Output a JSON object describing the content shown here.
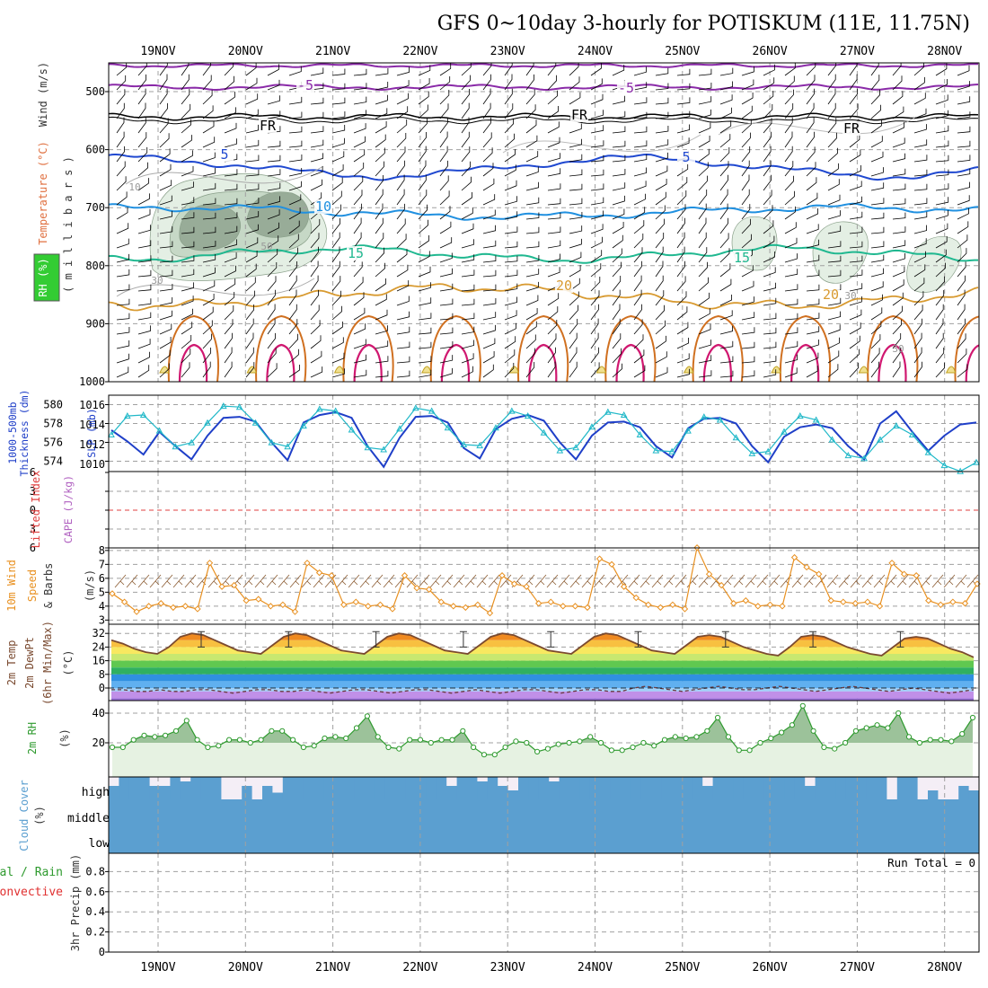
{
  "title": "GFS 0~10day 3-hourly for POTISKUM (11E, 11.75N)",
  "dates": [
    "19NOV",
    "20NOV",
    "21NOV",
    "22NOV",
    "23NOV",
    "24NOV",
    "25NOV",
    "26NOV",
    "27NOV",
    "28NOV"
  ],
  "colors": {
    "grid": "#a0a0a0",
    "thick": "#1f3fc8",
    "slp": "#20b8c8",
    "wind": "#e89020",
    "temp": "#7a4a30",
    "rh": "#2e9a2e",
    "cloud": "#5b9fd0",
    "cloud_bg": "#f4eef6"
  },
  "panel_labels": {
    "upper": {
      "wind": "Wind (m/s)",
      "temperature": "Temperature (°C)",
      "rh": "RH (%)",
      "millibars": "( m i l l i b a r s )"
    },
    "thickness": {
      "line1": "1000-500mb",
      "line2": "Thickness (dm)",
      "slp": "SLP (mb)"
    },
    "stability": {
      "lifted": "Lifted Index",
      "cape": "CAPE (J/kg)"
    },
    "wind10m": {
      "line1": "10m Wind",
      "line2": "Speed",
      "line3": "& Barbs",
      "unit": "(m/s)"
    },
    "temp2m": {
      "line1": "2m Temp",
      "line2": "2m DewPt",
      "line3": "(6hr Min/Max)",
      "unit": "(°C)"
    },
    "rh2m": {
      "line1": "2m RH",
      "unit": "(%)"
    },
    "cloud": {
      "line1": "Cloud Cover",
      "unit": "(%)",
      "high": "high",
      "middle": "middle",
      "low": "low"
    },
    "precip": {
      "line1": "Total / Rain",
      "line2": "Convective",
      "line3": "3hr Precip (mm)",
      "run_total": "Run Total = 0"
    }
  },
  "upper_air": {
    "pressure_ticks": [
      500,
      600,
      700,
      800,
      900,
      1000
    ],
    "isotherm_labels": [
      "-5",
      "-5",
      "FR",
      "FR",
      "FR",
      "5",
      "5",
      "10",
      "15",
      "15",
      "20",
      "20"
    ],
    "rh_labels": [
      "10",
      "30",
      "50",
      "30",
      "30"
    ]
  },
  "chart_data": [
    {
      "type": "line",
      "panel": "thickness-slp",
      "series": [
        {
          "name": "1000-500mb Thickness (dm)",
          "values": [
            577.3,
            576.1,
            574.7,
            577.1,
            575.6,
            574.2,
            576.7,
            578.6,
            578.7,
            578.2,
            576.0,
            574.1,
            578.1,
            578.9,
            579.2,
            578.6,
            575.6,
            573.4,
            576.5,
            578.7,
            578.8,
            578.1,
            575.4,
            574.3,
            577.4,
            578.5,
            578.9,
            578.3,
            576.0,
            574.2,
            576.7,
            578.1,
            578.2,
            577.6,
            575.6,
            574.4,
            577.5,
            578.5,
            578.6,
            578.0,
            575.6,
            573.9,
            576.6,
            577.6,
            577.9,
            577.5,
            575.6,
            574.2,
            578.0,
            579.3,
            577.1,
            575.1,
            576.7,
            577.9,
            578.1
          ]
        },
        {
          "name": "SLP (mb)",
          "values": [
            1013.0,
            1014.9,
            1015.0,
            1013.4,
            1011.8,
            1012.2,
            1014.2,
            1015.9,
            1015.8,
            1014.2,
            1012.2,
            1011.8,
            1013.9,
            1015.6,
            1015.4,
            1013.5,
            1011.7,
            1011.5,
            1013.6,
            1015.7,
            1015.4,
            1013.7,
            1012.0,
            1011.9,
            1013.7,
            1015.4,
            1014.9,
            1013.2,
            1011.4,
            1011.7,
            1013.8,
            1015.3,
            1015.0,
            1013.0,
            1011.4,
            1011.3,
            1013.4,
            1014.8,
            1014.5,
            1012.7,
            1011.1,
            1011.3,
            1013.3,
            1014.9,
            1014.5,
            1012.5,
            1010.9,
            1010.6,
            1012.5,
            1013.9,
            1013.0,
            1011.2,
            1009.9,
            1009.3,
            1010.2
          ]
        }
      ],
      "y_left": {
        "ticks": [
          574,
          576,
          578,
          580
        ]
      },
      "y_right": {
        "ticks": [
          1010,
          1012,
          1014,
          1016
        ]
      }
    },
    {
      "type": "line",
      "panel": "lifted-cape",
      "y_ticks": [
        "6",
        "3",
        "0",
        "3",
        "6"
      ],
      "series": []
    },
    {
      "type": "line",
      "panel": "wind10m",
      "y_ticks": [
        3,
        4,
        5,
        6,
        7,
        8
      ],
      "series": [
        {
          "name": "10m Wind Speed",
          "values": [
            4.9,
            4.3,
            3.6,
            4.0,
            4.2,
            3.9,
            4.0,
            3.8,
            7.1,
            5.4,
            5.5,
            4.4,
            4.5,
            4.0,
            4.1,
            3.6,
            7.1,
            6.4,
            6.2,
            4.1,
            4.3,
            4.0,
            4.1,
            3.8,
            6.2,
            5.3,
            5.2,
            4.3,
            4.0,
            3.9,
            4.1,
            3.5,
            6.2,
            5.6,
            5.4,
            4.2,
            4.3,
            4.0,
            4.0,
            3.9,
            7.4,
            7.0,
            5.4,
            4.6,
            4.1,
            3.9,
            4.1,
            3.8,
            8.2,
            6.3,
            5.5,
            4.2,
            4.4,
            4.0,
            4.1,
            4.0,
            7.5,
            6.8,
            6.3,
            4.4,
            4.3,
            4.2,
            4.3,
            4.0,
            7.1,
            6.3,
            6.2,
            4.4,
            4.1,
            4.3,
            4.2,
            5.6
          ]
        }
      ]
    },
    {
      "type": "area",
      "panel": "temp2m",
      "y_ticks": [
        0,
        8,
        16,
        24,
        32
      ],
      "series": [
        {
          "name": "2m Temp",
          "values": [
            28,
            26,
            23,
            21,
            20,
            24,
            30,
            32,
            31,
            28,
            25,
            22,
            21,
            20,
            25,
            30,
            32,
            31,
            28,
            25,
            22,
            21,
            20,
            25,
            30,
            32,
            31,
            28,
            25,
            22,
            21,
            20,
            25,
            30,
            32,
            31,
            28,
            25,
            22,
            21,
            20,
            25,
            30,
            32,
            31,
            28,
            25,
            22,
            21,
            20,
            25,
            30,
            31,
            30,
            27,
            24,
            22,
            20,
            19,
            24,
            30,
            31,
            30,
            27,
            24,
            22,
            20,
            19,
            24,
            29,
            30,
            29,
            26,
            23,
            21,
            18
          ]
        },
        {
          "name": "2m DewPt",
          "values": [
            -1,
            -1,
            -2,
            -2,
            -1,
            -2,
            -2,
            -1,
            -1,
            -2,
            -3,
            -2,
            -1,
            -1,
            -2,
            -2,
            -1,
            -2,
            -3,
            -2,
            -1,
            -1,
            -2,
            -3,
            -2,
            -1,
            -1,
            -2,
            -3,
            -2,
            -1,
            -2,
            -3,
            -2,
            -1,
            -1,
            -2,
            -3,
            -2,
            -1,
            -1,
            -2,
            -2,
            0,
            1,
            0,
            -1,
            -2,
            -1,
            0,
            1,
            0,
            -1,
            -1,
            0,
            1,
            0,
            -1,
            -2,
            -1,
            0,
            1,
            0,
            -1,
            -2,
            -1,
            0,
            -1,
            -2,
            -3,
            -2,
            -1
          ]
        }
      ]
    },
    {
      "type": "area",
      "panel": "rh2m",
      "y_ticks": [
        20,
        40
      ],
      "series": [
        {
          "name": "2m RH",
          "values": [
            17,
            17,
            22,
            25,
            24,
            25,
            28,
            35,
            22,
            17,
            18,
            22,
            22,
            20,
            22,
            28,
            28,
            22,
            17,
            18,
            23,
            24,
            23,
            30,
            38,
            24,
            17,
            16,
            22,
            22,
            20,
            22,
            22,
            28,
            17,
            12,
            12,
            17,
            21,
            20,
            14,
            16,
            19,
            20,
            21,
            24,
            20,
            15,
            15,
            17,
            20,
            18,
            22,
            24,
            23,
            24,
            28,
            37,
            24,
            15,
            15,
            20,
            23,
            27,
            32,
            45,
            28,
            17,
            16,
            20,
            28,
            30,
            32,
            30,
            40,
            24,
            20,
            22,
            22,
            21,
            26,
            37
          ]
        }
      ]
    },
    {
      "type": "bar",
      "panel": "cloud",
      "series": [
        {
          "name": "high",
          "values": [
            60,
            100,
            100,
            100,
            60,
            60,
            100,
            80,
            100,
            100,
            100,
            0,
            0,
            60,
            0,
            60,
            30,
            100,
            100,
            100,
            100,
            100,
            100,
            100,
            100,
            100,
            100,
            100,
            100,
            100,
            100,
            100,
            100,
            60,
            100,
            100,
            80,
            100,
            60,
            40,
            100,
            100,
            100,
            80,
            100,
            100,
            100,
            100,
            100,
            100,
            100,
            100,
            100,
            100,
            100,
            100,
            100,
            100,
            60,
            100,
            100,
            100,
            100,
            100,
            100,
            100,
            100,
            100,
            60,
            100,
            100,
            100,
            100,
            100,
            100,
            100,
            0,
            100,
            100,
            0,
            40,
            0,
            0,
            60,
            40
          ]
        }
      ]
    },
    {
      "type": "bar",
      "panel": "precip",
      "y_ticks": [
        "0",
        "0.2",
        "0.4",
        "0.6",
        "0.8"
      ],
      "series": []
    }
  ]
}
